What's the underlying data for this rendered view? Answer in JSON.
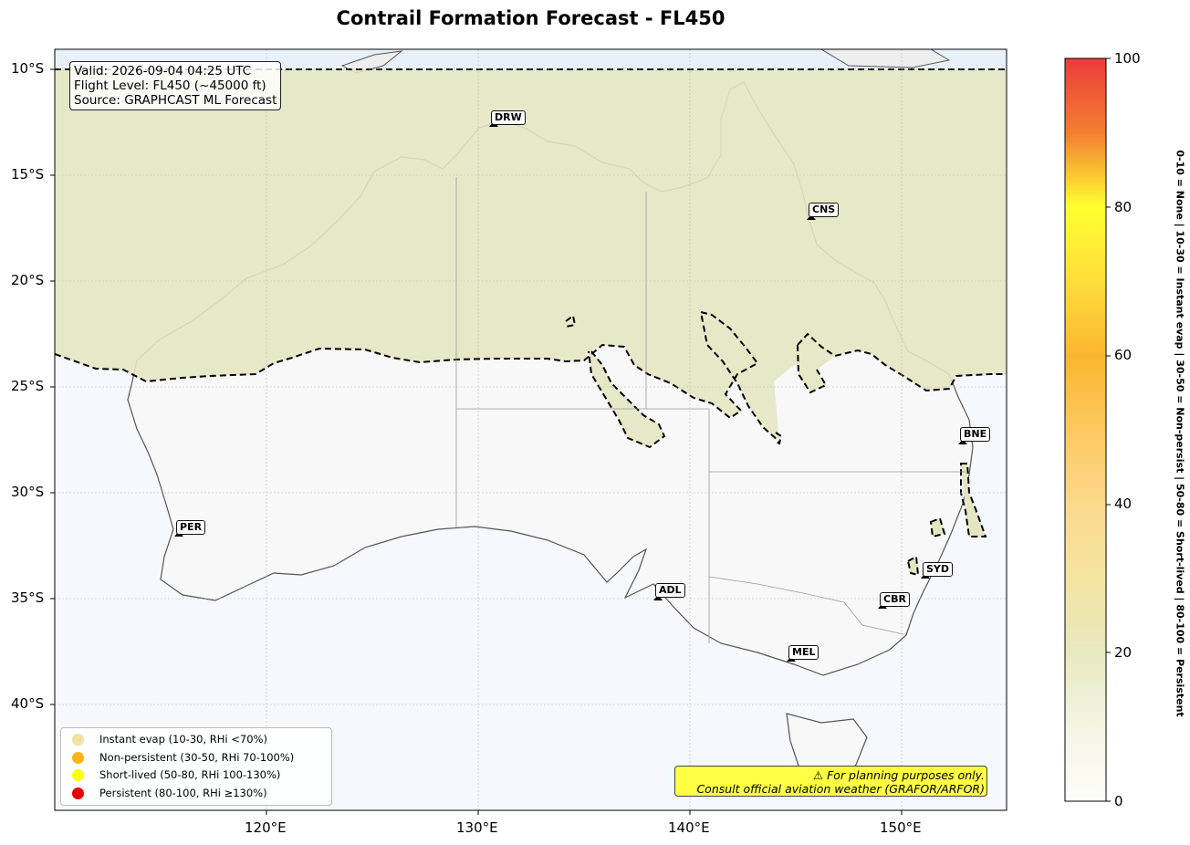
{
  "title": "Contrail Formation Forecast - FL450",
  "info": {
    "valid": "Valid: 2026-09-04 04:25 UTC",
    "flight_level": "Flight Level: FL450 (~45000 ft)",
    "source": "Source: GRAPHCAST ML Forecast"
  },
  "lat_labels": [
    "10°S",
    "15°S",
    "20°S",
    "25°S",
    "30°S",
    "35°S",
    "40°S"
  ],
  "lon_labels": [
    "120°E",
    "130°E",
    "140°E",
    "150°E"
  ],
  "cities": [
    {
      "code": "DRW"
    },
    {
      "code": "CNS"
    },
    {
      "code": "BNE"
    },
    {
      "code": "PER"
    },
    {
      "code": "SYD"
    },
    {
      "code": "ADL"
    },
    {
      "code": "CBR"
    },
    {
      "code": "MEL"
    }
  ],
  "legend": [
    {
      "label": "Instant evap (10-30, RHi <70%)",
      "color": "#f0e2a0"
    },
    {
      "label": "Non-persistent (30-50, RHi 70-100%)",
      "color": "#fdb515"
    },
    {
      "label": "Short-lived (50-80, RHi 100-130%)",
      "color": "#ffff00"
    },
    {
      "label": "Persistent (80-100, RHi ≥130%)",
      "color": "#e60000"
    }
  ],
  "warning": {
    "line1": "⚠ For planning purposes only.",
    "line2": "Consult official aviation weather (GRAFOR/ARFOR)"
  },
  "colorbar": {
    "ticks": [
      "0",
      "20",
      "40",
      "60",
      "80",
      "100"
    ],
    "note": "0-10 = None  |  10-30 = Instant evap  |  30-50 = Non-persist  |  50-80 = Short-lived  |  80-100 = Persistent"
  },
  "colors": {
    "northern_zone": "#e6e7c6",
    "ocean": "#f5f9fd",
    "land_south": "#f8f8f8"
  }
}
